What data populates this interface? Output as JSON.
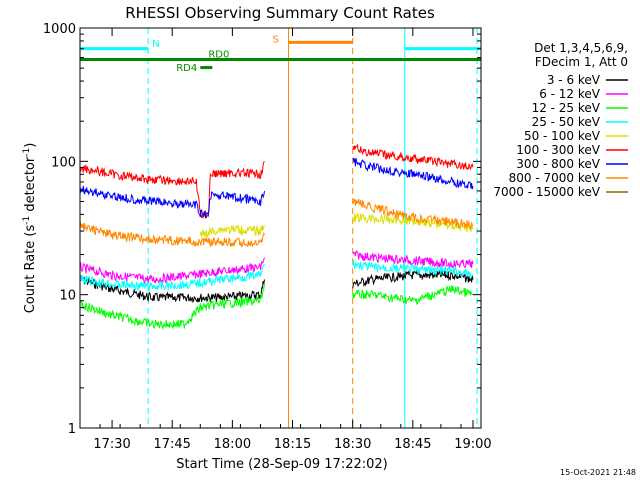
{
  "chart_data": {
    "type": "line",
    "title": "RHESSI Observing Summary Count Rates",
    "xlabel": "Start Time (28-Sep-09 17:22:02)",
    "ylabel_main": "Count Rate (s",
    "ylabel_exp1": "-1",
    "ylabel_mid": " detector",
    "ylabel_exp2": "-1",
    "ylabel_end": ")",
    "yscale": "log",
    "ylim": [
      1,
      1000
    ],
    "xlim_minutes": [
      1042,
      1142
    ],
    "x_ticks": [
      {
        "m": 1050,
        "label": "17:30"
      },
      {
        "m": 1065,
        "label": "17:45"
      },
      {
        "m": 1080,
        "label": "18:00"
      },
      {
        "m": 1095,
        "label": "18:15"
      },
      {
        "m": 1110,
        "label": "18:30"
      },
      {
        "m": 1125,
        "label": "18:45"
      },
      {
        "m": 1140,
        "label": "19:00"
      }
    ],
    "y_ticks": [
      {
        "v": 1,
        "label": "1"
      },
      {
        "v": 10,
        "label": "10"
      },
      {
        "v": 100,
        "label": "100"
      },
      {
        "v": 1000,
        "label": "1000"
      }
    ],
    "legend": {
      "header1": "Det 1,3,4,5,6,9,",
      "header2": "FDecim 1, Att 0",
      "placement": "right"
    },
    "series": [
      {
        "name": "3 - 6 keV",
        "color": "#000000",
        "segments": [
          [
            [
              1042,
              13
            ],
            [
              1050,
              11
            ],
            [
              1060,
              9.5
            ],
            [
              1070,
              9.5
            ],
            [
              1077,
              9.5
            ],
            [
              1087,
              10
            ],
            [
              1088,
              13
            ]
          ],
          [
            [
              1110,
              12
            ],
            [
              1115,
              13
            ],
            [
              1125,
              14
            ],
            [
              1135,
              14
            ],
            [
              1140,
              13
            ]
          ]
        ]
      },
      {
        "name": "6 - 12 keV",
        "color": "#ff00ff",
        "segments": [
          [
            [
              1042,
              16
            ],
            [
              1050,
              14
            ],
            [
              1060,
              13
            ],
            [
              1070,
              14
            ],
            [
              1077,
              15
            ],
            [
              1087,
              16
            ],
            [
              1088,
              19
            ]
          ],
          [
            [
              1110,
              20
            ],
            [
              1115,
              19
            ],
            [
              1125,
              18
            ],
            [
              1135,
              17
            ],
            [
              1140,
              17
            ]
          ]
        ]
      },
      {
        "name": "12 - 25 keV",
        "color": "#00ff00",
        "segments": [
          [
            [
              1042,
              8.5
            ],
            [
              1050,
              7
            ],
            [
              1060,
              6
            ],
            [
              1068,
              6
            ],
            [
              1072,
              8
            ],
            [
              1077,
              8.5
            ],
            [
              1087,
              9
            ],
            [
              1088,
              12
            ]
          ],
          [
            [
              1110,
              10
            ],
            [
              1115,
              10
            ],
            [
              1125,
              9
            ],
            [
              1135,
              11
            ],
            [
              1140,
              10
            ]
          ]
        ]
      },
      {
        "name": "25 - 50 keV",
        "color": "#00ffff",
        "segments": [
          [
            [
              1042,
              13
            ],
            [
              1050,
              12
            ],
            [
              1060,
              11.5
            ],
            [
              1070,
              12
            ],
            [
              1077,
              13
            ],
            [
              1087,
              14
            ],
            [
              1088,
              17
            ]
          ],
          [
            [
              1110,
              17
            ],
            [
              1115,
              16
            ],
            [
              1125,
              15.5
            ],
            [
              1135,
              15
            ],
            [
              1140,
              14
            ]
          ]
        ]
      },
      {
        "name": "50 - 100 keV",
        "color": "#dddd00",
        "segments": [
          [
            [
              1072,
              28
            ],
            [
              1077,
              31
            ],
            [
              1080,
              31
            ],
            [
              1087,
              30
            ],
            [
              1088,
              33
            ]
          ],
          [
            [
              1110,
              38
            ],
            [
              1115,
              37
            ],
            [
              1125,
              36
            ],
            [
              1135,
              33
            ],
            [
              1140,
              31
            ]
          ]
        ]
      },
      {
        "name": "100 - 300 keV",
        "color": "#ff0000",
        "segments": [
          [
            [
              1042,
              90
            ],
            [
              1050,
              80
            ],
            [
              1060,
              73
            ],
            [
              1071,
              70
            ],
            [
              1072,
              40
            ],
            [
              1074,
              40
            ],
            [
              1074.5,
              80
            ],
            [
              1080,
              82
            ],
            [
              1087,
              80
            ],
            [
              1088,
              100
            ]
          ],
          [
            [
              1110,
              125
            ],
            [
              1115,
              115
            ],
            [
              1125,
              105
            ],
            [
              1135,
              95
            ],
            [
              1140,
              90
            ]
          ]
        ]
      },
      {
        "name": "300 - 800 keV",
        "color": "#0000ff",
        "segments": [
          [
            [
              1042,
              62
            ],
            [
              1050,
              55
            ],
            [
              1060,
              50
            ],
            [
              1071,
              47
            ],
            [
              1072,
              40
            ],
            [
              1074,
              40
            ],
            [
              1074.5,
              56
            ],
            [
              1080,
              54
            ],
            [
              1087,
              50
            ],
            [
              1088,
              60
            ]
          ],
          [
            [
              1110,
              100
            ],
            [
              1115,
              90
            ],
            [
              1125,
              80
            ],
            [
              1135,
              70
            ],
            [
              1140,
              65
            ]
          ]
        ]
      },
      {
        "name": "800 - 7000 keV",
        "color": "#ff8800",
        "segments": [
          [
            [
              1042,
              33
            ],
            [
              1050,
              28
            ],
            [
              1060,
              26
            ],
            [
              1071,
              25
            ],
            [
              1077,
              25
            ],
            [
              1087,
              24
            ],
            [
              1088,
              28
            ]
          ],
          [
            [
              1110,
              50
            ],
            [
              1115,
              45
            ],
            [
              1125,
              38
            ],
            [
              1135,
              35
            ],
            [
              1140,
              33
            ]
          ]
        ]
      },
      {
        "name": "7000 - 15000 keV",
        "color": "#886600",
        "segments": []
      }
    ],
    "event_bars": [
      {
        "label": "N",
        "color": "#00ffff",
        "segments": [
          [
            1042,
            1059
          ],
          [
            1123,
            1142
          ]
        ],
        "level": 700
      },
      {
        "label": "S",
        "color": "#ff8800",
        "segments": [
          [
            1094,
            1110
          ]
        ],
        "level": 780
      },
      {
        "label": "",
        "color": "#008800",
        "segments": [
          [
            1042,
            1142
          ]
        ],
        "level": 580
      },
      {
        "label": "RD0",
        "color": "#008800",
        "segments": [],
        "level": 580
      },
      {
        "label": "RD4",
        "color": "#008800",
        "segments": [
          [
            1072,
            1075
          ]
        ],
        "level": 505
      }
    ],
    "vertical_lines": [
      {
        "m": 1042,
        "color": "#00ffff",
        "style": "solid"
      },
      {
        "m": 1059,
        "color": "#00ffff",
        "style": "dashed"
      },
      {
        "m": 1094,
        "color": "#ff8800",
        "style": "solid"
      },
      {
        "m": 1110,
        "color": "#ff8800",
        "style": "dashed"
      },
      {
        "m": 1123,
        "color": "#00ffff",
        "style": "solid"
      },
      {
        "m": 1141,
        "color": "#00ffff",
        "style": "dashed"
      }
    ],
    "timestamp": "15-Oct-2021 21:48"
  }
}
